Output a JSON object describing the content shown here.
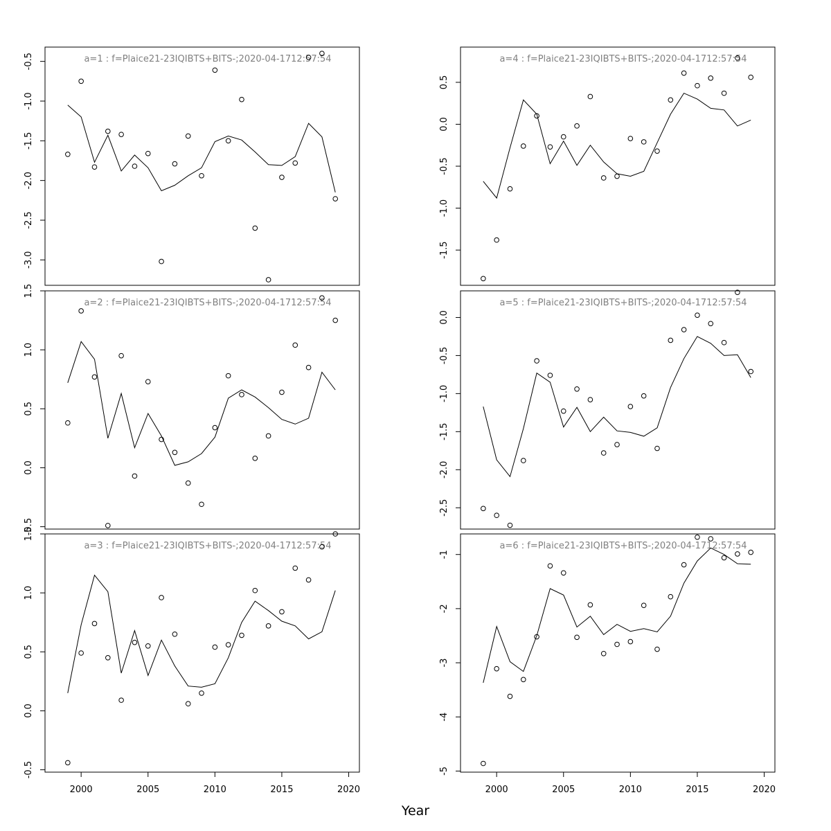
{
  "xlabel": "Year",
  "x_ticks": [
    "2000",
    "2005",
    "2010",
    "2015",
    "2020"
  ],
  "chart_data": [
    {
      "type": "line",
      "title": "a=1  :  f=Plaice21-23IQIBTS+BITS-;2020-04-1712:57:54",
      "x": [
        1999,
        2000,
        2001,
        2002,
        2003,
        2004,
        2005,
        2006,
        2007,
        2008,
        2009,
        2010,
        2011,
        2012,
        2013,
        2014,
        2015,
        2016,
        2017,
        2018,
        2019
      ],
      "series": [
        {
          "style": "line",
          "values": [
            -1.05,
            -1.2,
            -1.77,
            -1.43,
            -1.88,
            -1.68,
            -1.84,
            -2.13,
            -2.06,
            -1.94,
            -1.84,
            -1.51,
            -1.44,
            -1.49,
            -1.64,
            -1.8,
            -1.81,
            -1.7,
            -1.28,
            -1.45,
            -2.15
          ]
        },
        {
          "style": "points",
          "values": [
            -1.67,
            -0.75,
            -1.83,
            -1.38,
            -1.42,
            -1.82,
            -1.66,
            -3.02,
            -1.79,
            -1.44,
            -1.94,
            -0.61,
            -1.5,
            -0.98,
            -2.6,
            -3.25,
            -1.96,
            -1.78,
            -0.45,
            -0.4,
            -2.23
          ]
        }
      ],
      "ylim": [
        -3.32,
        -0.32
      ],
      "y_ticks": [
        -3.0,
        -2.5,
        -2.0,
        -1.5,
        -1.0,
        -0.5
      ],
      "y_tick_labels": [
        "-3.0",
        "-2.5",
        "-2.0",
        "-1.5",
        "-1.0",
        "-0.5"
      ]
    },
    {
      "type": "line",
      "title": "a=2  :  f=Plaice21-23IQIBTS+BITS-;2020-04-1712:57:54",
      "x": [
        1999,
        2000,
        2001,
        2002,
        2003,
        2004,
        2005,
        2006,
        2007,
        2008,
        2009,
        2010,
        2011,
        2012,
        2013,
        2014,
        2015,
        2016,
        2017,
        2018,
        2019
      ],
      "series": [
        {
          "style": "line",
          "values": [
            0.72,
            1.07,
            0.92,
            0.25,
            0.63,
            0.17,
            0.46,
            0.27,
            0.02,
            0.05,
            0.12,
            0.26,
            0.59,
            0.66,
            0.6,
            0.51,
            0.41,
            0.37,
            0.42,
            0.81,
            0.66
          ]
        },
        {
          "style": "points",
          "values": [
            0.38,
            1.33,
            0.77,
            -0.49,
            0.95,
            -0.07,
            0.73,
            0.24,
            0.13,
            -0.13,
            -0.31,
            0.34,
            0.78,
            0.62,
            0.08,
            0.27,
            0.64,
            1.04,
            0.85,
            1.44,
            1.25
          ]
        }
      ],
      "ylim": [
        -0.52,
        1.5
      ],
      "y_ticks": [
        -0.5,
        0.0,
        0.5,
        1.0,
        1.5
      ],
      "y_tick_labels": [
        "-0.5",
        "0.0",
        "0.5",
        "1.0",
        "1.5"
      ]
    },
    {
      "type": "line",
      "title": "a=3  :  f=Plaice21-23IQIBTS+BITS-;2020-04-1712:57:54",
      "x": [
        1999,
        2000,
        2001,
        2002,
        2003,
        2004,
        2005,
        2006,
        2007,
        2008,
        2009,
        2010,
        2011,
        2012,
        2013,
        2014,
        2015,
        2016,
        2017,
        2018,
        2019
      ],
      "series": [
        {
          "style": "line",
          "values": [
            0.15,
            0.73,
            1.15,
            1.01,
            0.32,
            0.68,
            0.3,
            0.6,
            0.38,
            0.21,
            0.2,
            0.23,
            0.45,
            0.75,
            0.93,
            0.85,
            0.76,
            0.72,
            0.61,
            0.67,
            1.02
          ]
        },
        {
          "style": "points",
          "values": [
            -0.44,
            0.49,
            0.74,
            0.45,
            0.09,
            0.58,
            0.55,
            0.96,
            0.65,
            0.06,
            0.15,
            0.54,
            0.56,
            0.64,
            1.02,
            0.72,
            0.84,
            1.21,
            1.11,
            1.39,
            1.5
          ]
        }
      ],
      "ylim": [
        -0.52,
        1.5
      ],
      "y_ticks": [
        -0.5,
        0.0,
        0.5,
        1.0,
        1.5
      ],
      "y_tick_labels": [
        "-0.5",
        "0.0",
        "0.5",
        "1.0",
        "1.5"
      ]
    },
    {
      "type": "line",
      "title": "a=4  :  f=Plaice21-23IQIBTS+BITS-;2020-04-1712:57:54",
      "x": [
        1999,
        2000,
        2001,
        2002,
        2003,
        2004,
        2005,
        2006,
        2007,
        2008,
        2009,
        2010,
        2011,
        2012,
        2013,
        2014,
        2015,
        2016,
        2017,
        2018,
        2019
      ],
      "series": [
        {
          "style": "line",
          "values": [
            -0.68,
            -0.88,
            -0.28,
            0.29,
            0.12,
            -0.47,
            -0.2,
            -0.49,
            -0.25,
            -0.45,
            -0.59,
            -0.62,
            -0.56,
            -0.22,
            0.12,
            0.37,
            0.3,
            0.19,
            0.17,
            -0.02,
            0.05
          ]
        },
        {
          "style": "points",
          "values": [
            -1.84,
            -1.38,
            -0.77,
            -0.26,
            0.1,
            -0.27,
            -0.15,
            -0.02,
            0.33,
            -0.64,
            -0.62,
            -0.17,
            -0.21,
            -0.32,
            0.29,
            0.61,
            0.46,
            0.55,
            0.37,
            0.79,
            0.56
          ]
        }
      ],
      "ylim": [
        -1.92,
        0.92
      ],
      "y_ticks": [
        -1.5,
        -1.0,
        -0.5,
        0.0,
        0.5
      ],
      "y_tick_labels": [
        "-1.5",
        "-1.0",
        "-0.5",
        "0.0",
        "0.5"
      ]
    },
    {
      "type": "line",
      "title": "a=5  :  f=Plaice21-23IQIBTS+BITS-;2020-04-1712:57:54",
      "x": [
        1999,
        2000,
        2001,
        2002,
        2003,
        2004,
        2005,
        2006,
        2007,
        2008,
        2009,
        2010,
        2011,
        2012,
        2013,
        2014,
        2015,
        2016,
        2017,
        2018,
        2019
      ],
      "series": [
        {
          "style": "line",
          "values": [
            -1.17,
            -1.87,
            -2.09,
            -1.46,
            -0.73,
            -0.85,
            -1.44,
            -1.18,
            -1.5,
            -1.31,
            -1.49,
            -1.51,
            -1.56,
            -1.45,
            -0.92,
            -0.54,
            -0.25,
            -0.34,
            -0.5,
            -0.49,
            -0.79
          ]
        },
        {
          "style": "points",
          "values": [
            -2.51,
            -2.6,
            -2.73,
            -1.88,
            -0.57,
            -0.76,
            -1.23,
            -0.94,
            -1.08,
            -1.78,
            -1.67,
            -1.17,
            -1.03,
            -1.72,
            -0.3,
            -0.16,
            0.03,
            -0.08,
            -0.33,
            0.33,
            -0.71
          ]
        }
      ],
      "ylim": [
        -2.78,
        0.35
      ],
      "y_ticks": [
        -2.5,
        -2.0,
        -1.5,
        -1.0,
        -0.5,
        0.0
      ],
      "y_tick_labels": [
        "-2.5",
        "-2.0",
        "-1.5",
        "-1.0",
        "-0.5",
        "0.0"
      ]
    },
    {
      "type": "line",
      "title": "a=6  :  f=Plaice21-23IQIBTS+BITS-;2020-04-1712:57:54",
      "x": [
        1999,
        2000,
        2001,
        2002,
        2003,
        2004,
        2005,
        2006,
        2007,
        2008,
        2009,
        2010,
        2011,
        2012,
        2013,
        2014,
        2015,
        2016,
        2017,
        2018,
        2019
      ],
      "series": [
        {
          "style": "line",
          "values": [
            -3.37,
            -2.33,
            -2.98,
            -3.16,
            -2.5,
            -1.63,
            -1.75,
            -2.34,
            -2.14,
            -2.48,
            -2.29,
            -2.42,
            -2.37,
            -2.43,
            -2.14,
            -1.53,
            -1.12,
            -0.88,
            -1.0,
            -1.17,
            -1.18
          ]
        },
        {
          "style": "points",
          "values": [
            -4.86,
            -3.11,
            -3.62,
            -3.31,
            -2.52,
            -1.21,
            -1.34,
            -2.53,
            -1.93,
            -2.83,
            -2.66,
            -2.61,
            -1.94,
            -2.75,
            -1.78,
            -1.19,
            -0.68,
            -0.71,
            -1.06,
            -0.99,
            -0.96
          ]
        }
      ],
      "ylim": [
        -5.02,
        -0.62
      ],
      "y_ticks": [
        -5,
        -4,
        -3,
        -2,
        -1
      ],
      "y_tick_labels": [
        "-5",
        "-4",
        "-3",
        "-2",
        "-1"
      ]
    }
  ]
}
